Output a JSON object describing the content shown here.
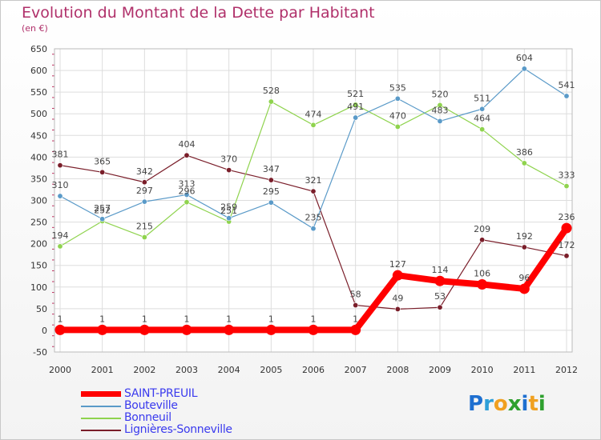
{
  "title": "Evolution du Montant de la Dette par Habitant",
  "unit": "(en €)",
  "logo": {
    "letters": [
      "P",
      "r",
      "o",
      "x",
      "i",
      "t",
      "i"
    ],
    "colors": [
      "#1e6fd0",
      "#2e9fd8",
      "#f0a020",
      "#2ea02e",
      "#1e6fd0",
      "#f0a020",
      "#2ea02e"
    ]
  },
  "chart_data": {
    "type": "line",
    "title": "Evolution du Montant de la Dette par Habitant",
    "ylabel": "(en €)",
    "xlabel": "",
    "ylim": [
      -50,
      650
    ],
    "yticks": [
      -50,
      0,
      50,
      100,
      150,
      200,
      250,
      300,
      350,
      400,
      450,
      500,
      550,
      600,
      650
    ],
    "ytick_labels": [
      "-50",
      "0",
      "50",
      "100",
      "150",
      "200",
      "250",
      "300",
      "350",
      "400",
      "450",
      "500",
      "550",
      "600",
      "650"
    ],
    "categories": [
      "2000",
      "2001",
      "2002",
      "2003",
      "2004",
      "2005",
      "2006",
      "2007",
      "2008",
      "2009",
      "2010",
      "2011",
      "2012"
    ],
    "grid": true,
    "series": [
      {
        "name": "Lignières-Sonneville",
        "color": "#7a1e2a",
        "values": [
          381,
          365,
          342,
          404,
          370,
          347,
          321,
          58,
          49,
          53,
          209,
          192,
          172
        ],
        "labels": [
          "381",
          "365",
          "342",
          "404",
          "370",
          "347",
          "321",
          "58",
          "49",
          "53",
          "209",
          "192",
          "172"
        ]
      },
      {
        "name": "Bonneuil",
        "color": "#8fd34e",
        "values": [
          194,
          252,
          215,
          296,
          251,
          528,
          474,
          521,
          470,
          520,
          464,
          386,
          333
        ],
        "labels": [
          "194",
          "252",
          "215",
          "296",
          "251",
          "528",
          "474",
          "521",
          "470",
          "520",
          "464",
          "386",
          "333"
        ]
      },
      {
        "name": "Bouteville",
        "color": "#5a9ac8",
        "values": [
          310,
          257,
          297,
          313,
          259,
          295,
          235,
          491,
          535,
          483,
          511,
          604,
          541
        ],
        "labels": [
          "310",
          "257",
          "297",
          "313",
          "259",
          "295",
          "235",
          "491",
          "535",
          "483",
          "511",
          "604",
          "541"
        ]
      },
      {
        "name": "SAINT-PREUIL",
        "color": "#ff0000",
        "values": [
          1,
          1,
          1,
          1,
          1,
          1,
          1,
          1,
          127,
          114,
          106,
          96,
          236
        ],
        "labels": [
          "1",
          "1",
          "1",
          "1",
          "1",
          "1",
          "1",
          "1",
          "127",
          "114",
          "106",
          "96",
          "236"
        ]
      }
    ],
    "legend": [
      "SAINT-PREUIL",
      "Bouteville",
      "Bonneuil",
      "Lignières-Sonneville"
    ],
    "legend_position": "bottom-left"
  }
}
